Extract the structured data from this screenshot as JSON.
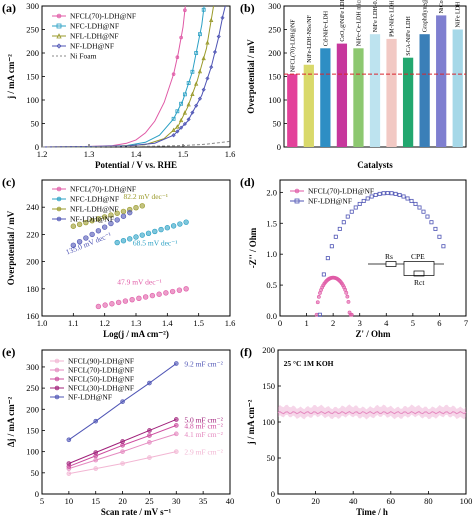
{
  "panels": {
    "a": "(a)",
    "b": "(b)",
    "c": "(c)",
    "d": "(d)",
    "e": "(e)",
    "f": "(f)"
  },
  "chart_data": [
    {
      "id": "a",
      "type": "line",
      "xlabel": "Potential / V vs. RHE",
      "ylabel": "j / mA cm⁻²",
      "xlim": [
        1.2,
        1.6
      ],
      "ylim": [
        0,
        300
      ],
      "xticks": [
        "1.2",
        "1.3",
        "1.4",
        "1.5",
        "1.6"
      ],
      "yticks": [
        "0",
        "50",
        "100",
        "150",
        "200",
        "250",
        "300"
      ],
      "grid": false,
      "legend_position": "top-left",
      "series": [
        {
          "name": "NFCL(70)-LDH@NF",
          "color": "#e05aa6",
          "marker": "circle",
          "x": [
            1.2,
            1.3,
            1.35,
            1.38,
            1.4,
            1.42,
            1.44,
            1.46,
            1.48,
            1.49,
            1.5,
            1.505
          ],
          "y": [
            0,
            1,
            3,
            8,
            15,
            30,
            55,
            95,
            155,
            200,
            255,
            300
          ]
        },
        {
          "name": "NFC-LDH@NF",
          "color": "#2aa0c4",
          "marker": "square",
          "x": [
            1.2,
            1.3,
            1.38,
            1.42,
            1.45,
            1.48,
            1.5,
            1.52,
            1.53,
            1.54,
            1.545
          ],
          "y": [
            0,
            0.5,
            3,
            10,
            25,
            60,
            100,
            160,
            210,
            260,
            300
          ]
        },
        {
          "name": "NFL-LDH@NF",
          "color": "#9a9a2a",
          "marker": "triangle",
          "x": [
            1.2,
            1.35,
            1.42,
            1.46,
            1.49,
            1.51,
            1.53,
            1.55,
            1.56,
            1.565
          ],
          "y": [
            0,
            1,
            5,
            18,
            45,
            85,
            140,
            210,
            270,
            300
          ]
        },
        {
          "name": "NF-LDH@NF",
          "color": "#4f55b5",
          "marker": "diamond",
          "x": [
            1.2,
            1.38,
            1.44,
            1.48,
            1.51,
            1.54,
            1.56,
            1.575,
            1.585,
            1.59
          ],
          "y": [
            0,
            2,
            8,
            25,
            55,
            110,
            170,
            230,
            280,
            300
          ]
        },
        {
          "name": "Ni Foam",
          "color": "#888888",
          "marker": "none",
          "dashed": true,
          "x": [
            1.2,
            1.4,
            1.5,
            1.55,
            1.6
          ],
          "y": [
            0,
            1,
            3,
            6,
            12
          ]
        }
      ]
    },
    {
      "id": "b",
      "type": "bar",
      "xlabel": "Catalysts",
      "ylabel": "Overpotential / mV",
      "ylim": [
        0,
        300
      ],
      "yticks": [
        "0",
        "50",
        "100",
        "150",
        "200",
        "250",
        "300"
      ],
      "reference_line": 155,
      "categories": [
        "NFCL(70)-LDH@NF",
        "NiFe-LDH-NSs/NF",
        "Cd-NiFe-LDH",
        "CeO₂@NiFe LDH",
        "NiFe-Ce-LDH microcapsules",
        "NiFe LDH-0.20 M",
        "PM-NiFe LDH",
        "SCA-NiFe LDH",
        "Graphdiyne@NiFe LDH",
        "NiCo LDH@ZIF-67",
        "NiFe LDH with Ni vacancies"
      ],
      "values": [
        155,
        175,
        210,
        220,
        210,
        240,
        230,
        190,
        240,
        280,
        250
      ],
      "colors": [
        "#e3419a",
        "#d9d96a",
        "#2e8ec4",
        "#c7379c",
        "#8dc870",
        "#bde3ef",
        "#f2c9c4",
        "#23a76f",
        "#3a7fb8",
        "#7f7fd0",
        "#a6d8e8"
      ]
    },
    {
      "id": "c",
      "type": "scatter",
      "xlabel": "Log(j / mA cm⁻²)",
      "ylabel": "Overpotential / mV",
      "xlim": [
        1.0,
        1.6
      ],
      "ylim": [
        160,
        260
      ],
      "xticks": [
        "1.0",
        "1.1",
        "1.2",
        "1.3",
        "1.4",
        "1.5",
        "1.6"
      ],
      "yticks": [
        "160",
        "180",
        "200",
        "220",
        "240"
      ],
      "legend_position": "top-left",
      "series": [
        {
          "name": "NFCL(70)-LDH@NF",
          "color": "#e05aa6",
          "x0": 1.18,
          "x1": 1.46,
          "y0": 167,
          "y1": 180,
          "n": 14
        },
        {
          "name": "NFC-LDH@NF",
          "color": "#2aa0c4",
          "x0": 1.24,
          "x1": 1.46,
          "y0": 214,
          "y1": 229,
          "n": 12
        },
        {
          "name": "NFL-LDH@NF",
          "color": "#9a9a2a",
          "x0": 1.1,
          "x1": 1.32,
          "y0": 226,
          "y1": 241,
          "n": 12
        },
        {
          "name": "NF-LDH@NF",
          "color": "#4f55b5",
          "x0": 1.1,
          "x1": 1.28,
          "y0": 212,
          "y1": 236,
          "n": 10
        }
      ],
      "annotations": [
        {
          "text": "82.2 mV dec⁻¹",
          "color": "#9a9a2a",
          "x": 1.26,
          "y": 246
        },
        {
          "text": "68.5 mV dec⁻¹",
          "color": "#2aa0c4",
          "x": 1.29,
          "y": 212
        },
        {
          "text": "135.0 mV dec⁻¹",
          "color": "#4f55b5",
          "x": 1.08,
          "y": 205
        },
        {
          "text": "47.9 mV dec⁻¹",
          "color": "#e05aa6",
          "x": 1.24,
          "y": 183
        }
      ]
    },
    {
      "id": "d",
      "type": "scatter",
      "xlabel": "Z' / Ohm",
      "ylabel": "-Z'' / Ohm",
      "xlim": [
        0,
        7
      ],
      "ylim": [
        0,
        2.2
      ],
      "xticks": [
        "0",
        "1",
        "2",
        "3",
        "4",
        "5",
        "6",
        "7"
      ],
      "yticks": [
        "0.0",
        "0.5",
        "1.0",
        "1.5",
        "2.0"
      ],
      "legend_position": "top-left",
      "circuit_labels": [
        "Rs",
        "CPE",
        "Rct"
      ],
      "series": [
        {
          "name": "NFCL(70)-LDH@NF",
          "color": "#e05aa6",
          "marker": "circle",
          "cx": 2.0,
          "r": 0.62,
          "yscale": 1.0,
          "start": 1.38,
          "end": 2.7
        },
        {
          "name": "NF-LDH@NF",
          "color": "#4f55b5",
          "marker": "square",
          "cx": 4.05,
          "r": 2.55,
          "yscale": 0.78,
          "start": 1.5,
          "end": 6.3
        }
      ]
    },
    {
      "id": "e",
      "type": "line",
      "xlabel": "Scan rate / mV s⁻¹",
      "ylabel": "Δj / mA cm⁻²",
      "xlim": [
        5,
        40
      ],
      "ylim": [
        0,
        340
      ],
      "xticks": [
        "5",
        "10",
        "15",
        "20",
        "25",
        "30",
        "35",
        "40"
      ],
      "yticks": [
        "0",
        "50",
        "100",
        "150",
        "200",
        "250",
        "300"
      ],
      "legend_position": "top-left",
      "x": [
        10,
        15,
        20,
        25,
        30
      ],
      "series": [
        {
          "name": "NFCL(90)-LDH@NF",
          "color": "#f2b6d3",
          "values": [
            48,
            60,
            72,
            86,
            100
          ],
          "label": "2.9 mF cm⁻²"
        },
        {
          "name": "NFCL(70)-LDH@NF",
          "color": "#e58ac0",
          "values": [
            60,
            80,
            100,
            122,
            142
          ],
          "label": "4.1 mF cm⁻²"
        },
        {
          "name": "NFCL(50)-LDH@NF",
          "color": "#cc4c9e",
          "values": [
            65,
            90,
            115,
            138,
            162
          ],
          "label": "4.8 mF cm⁻²"
        },
        {
          "name": "NFCL(30)-LDH@NF",
          "color": "#a0207a",
          "values": [
            72,
            98,
            124,
            150,
            176
          ],
          "label": "5.0 mF cm⁻²"
        },
        {
          "name": "NF-LDH@NF",
          "color": "#4f55b5",
          "values": [
            128,
            172,
            218,
            262,
            308
          ],
          "label": "9.2 mF cm⁻²"
        }
      ]
    },
    {
      "id": "f",
      "type": "line",
      "xlabel": "Time / h",
      "ylabel": "j / mA cm⁻²",
      "xlim": [
        0,
        100
      ],
      "ylim": [
        0,
        200
      ],
      "xticks": [
        "0",
        "20",
        "40",
        "60",
        "80",
        "100"
      ],
      "yticks": [
        "0",
        "50",
        "100",
        "150",
        "200"
      ],
      "annotation": "25 °C 1M KOH",
      "series": [
        {
          "name": "",
          "color": "#e58ac0",
          "level": 113
        }
      ]
    }
  ]
}
